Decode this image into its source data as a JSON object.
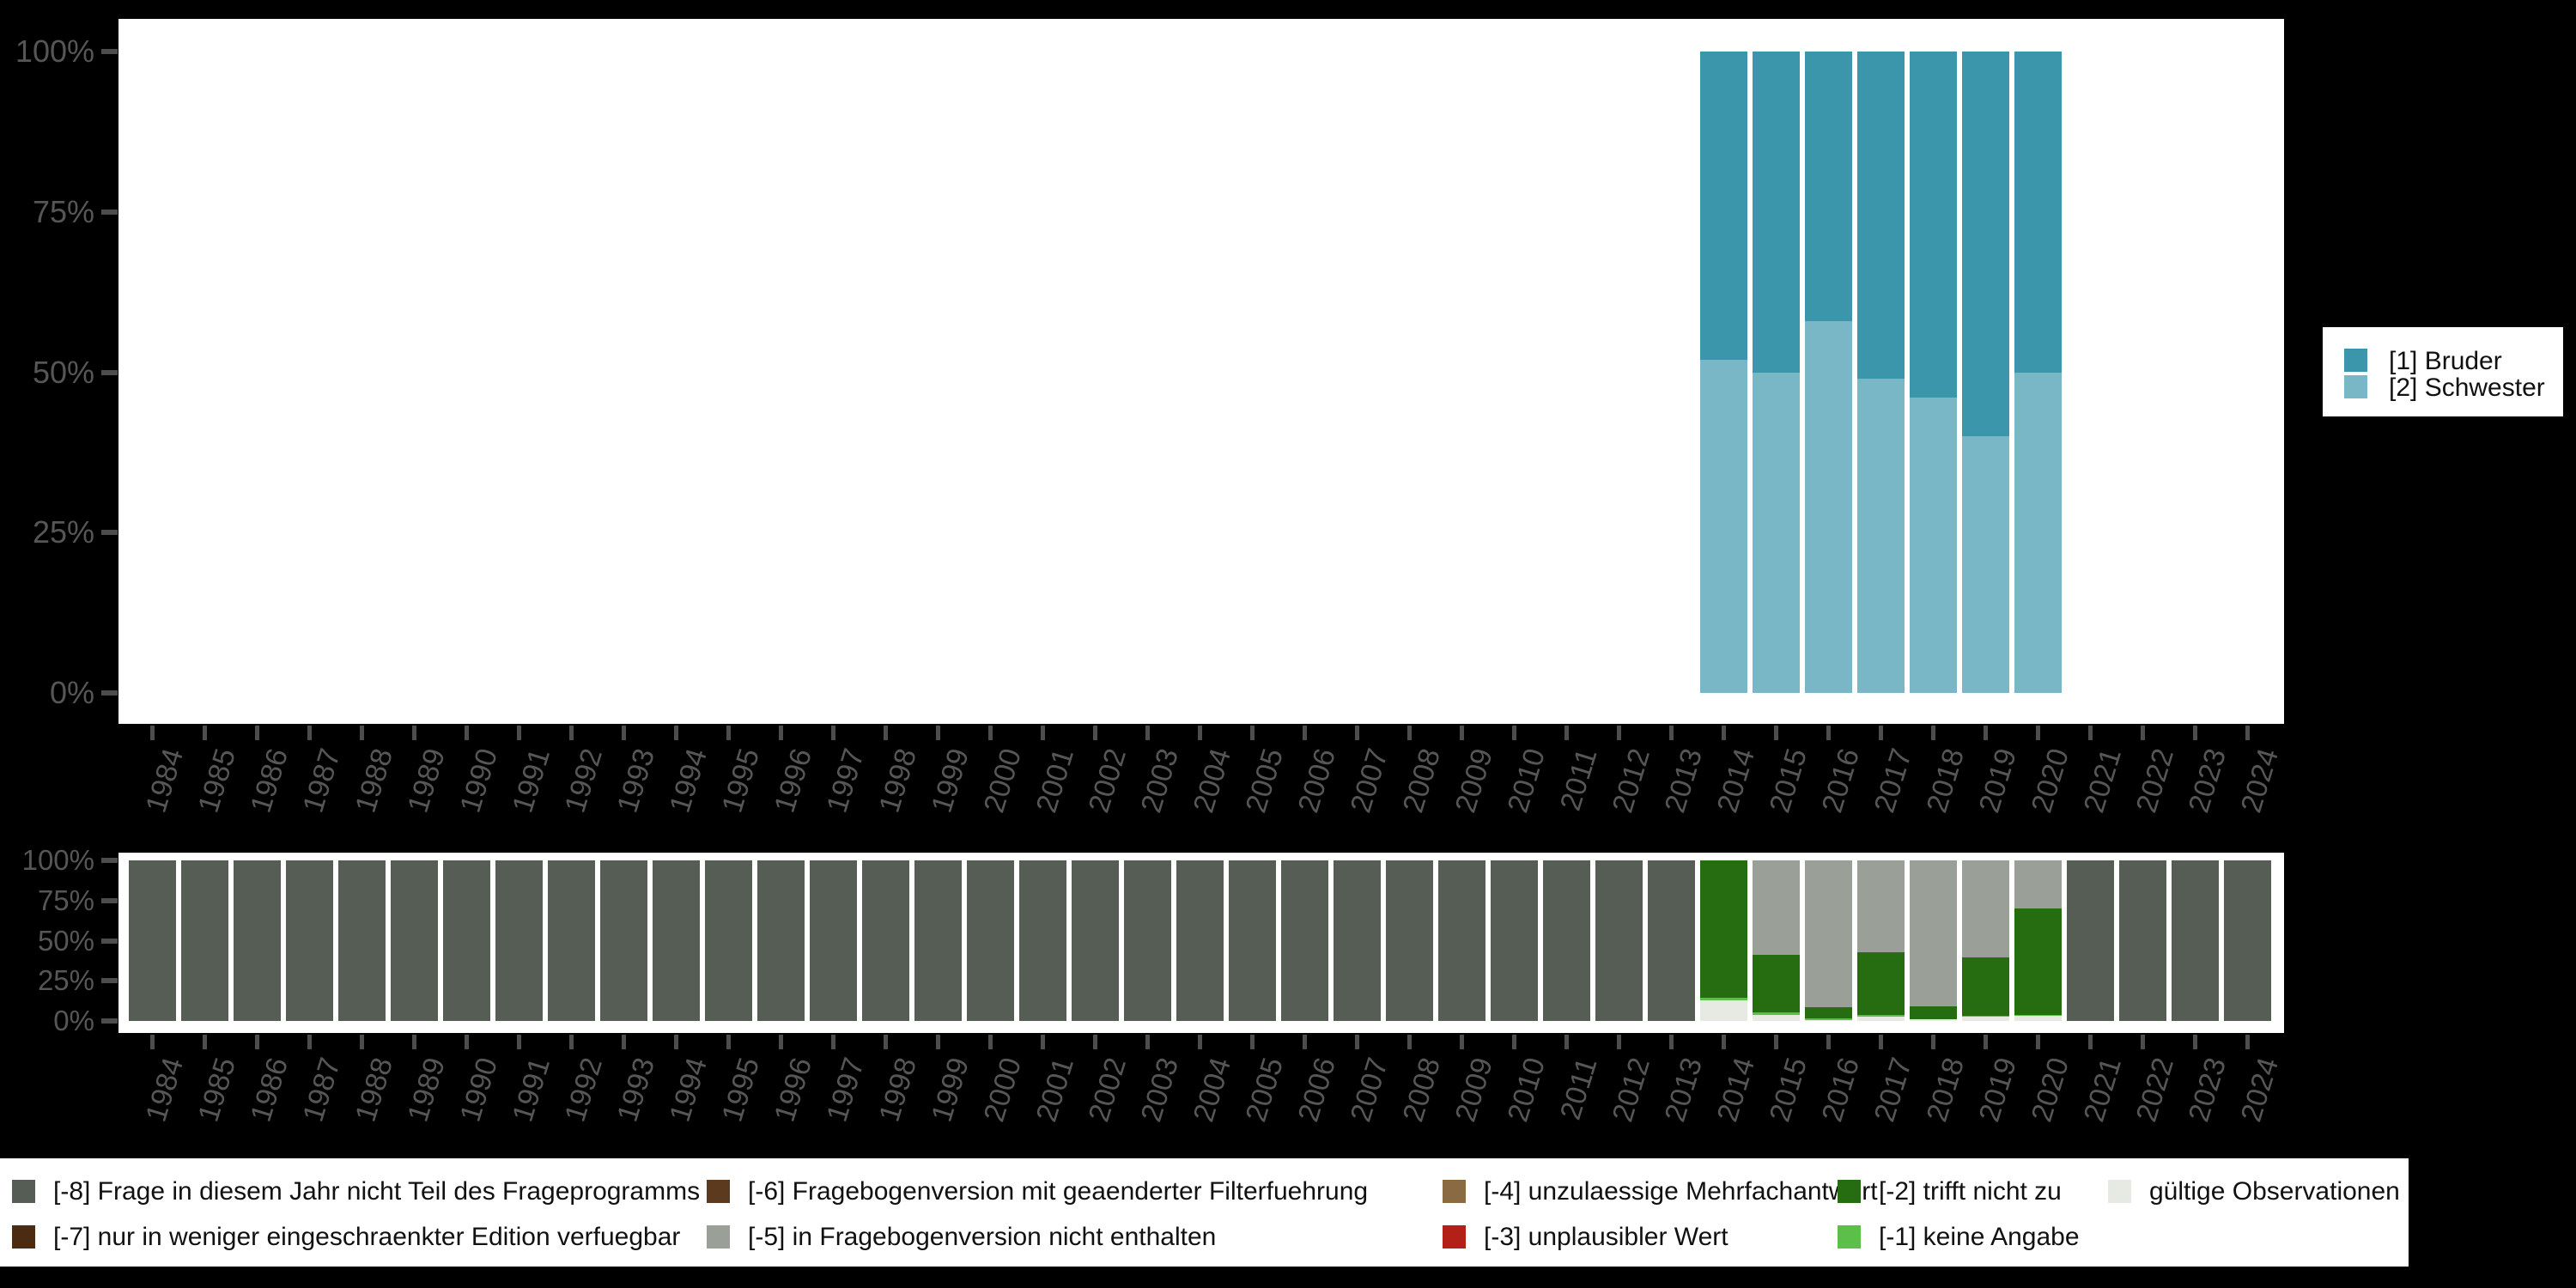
{
  "colors": {
    "background": "#000000",
    "plot_bg": "#ffffff",
    "axis_text": "#565656",
    "tick": "#4d4d4d",
    "legend_text": "#111111",
    "bruder": "#3b96ab",
    "schwester": "#7ab7c6",
    "m8": "#565d55",
    "m7": "#4b2b12",
    "m6": "#5c3a1e",
    "m5": "#9aa098",
    "m4": "#8a6a43",
    "m3": "#b22018",
    "m2": "#266d12",
    "m1": "#5cbf49",
    "valid": "#e6eae2"
  },
  "chart_data": [
    {
      "type": "bar",
      "stacked": true,
      "unit": "percent",
      "title": "",
      "xlabel": "",
      "ylabel": "",
      "ylim": [
        0,
        100
      ],
      "grid": false,
      "legend_position": "right",
      "categories": [
        "1984",
        "1985",
        "1986",
        "1987",
        "1988",
        "1989",
        "1990",
        "1991",
        "1992",
        "1993",
        "1994",
        "1995",
        "1996",
        "1997",
        "1998",
        "1999",
        "2000",
        "2001",
        "2002",
        "2003",
        "2004",
        "2005",
        "2006",
        "2007",
        "2008",
        "2009",
        "2010",
        "2011",
        "2012",
        "2013",
        "2014",
        "2015",
        "2016",
        "2017",
        "2018",
        "2019",
        "2020",
        "2021",
        "2022",
        "2023",
        "2024"
      ],
      "yticks": [
        {
          "label": "0%",
          "value": 0
        },
        {
          "label": "25%",
          "value": 25
        },
        {
          "label": "50%",
          "value": 50
        },
        {
          "label": "75%",
          "value": 75
        },
        {
          "label": "100%",
          "value": 100
        }
      ],
      "stack_order_bottom_to_top": [
        "[2] Schwester",
        "[1] Bruder"
      ],
      "series": [
        {
          "name": "[1] Bruder",
          "color_key": "bruder",
          "values": [
            null,
            null,
            null,
            null,
            null,
            null,
            null,
            null,
            null,
            null,
            null,
            null,
            null,
            null,
            null,
            null,
            null,
            null,
            null,
            null,
            null,
            null,
            null,
            null,
            null,
            null,
            null,
            null,
            null,
            null,
            48,
            50,
            42,
            51,
            54,
            60,
            50,
            null,
            null,
            null,
            null
          ]
        },
        {
          "name": "[2] Schwester",
          "color_key": "schwester",
          "values": [
            null,
            null,
            null,
            null,
            null,
            null,
            null,
            null,
            null,
            null,
            null,
            null,
            null,
            null,
            null,
            null,
            null,
            null,
            null,
            null,
            null,
            null,
            null,
            null,
            null,
            null,
            null,
            null,
            null,
            null,
            52,
            50,
            58,
            49,
            46,
            40,
            50,
            null,
            null,
            null,
            null
          ]
        }
      ]
    },
    {
      "type": "bar",
      "stacked": true,
      "unit": "percent",
      "title": "",
      "xlabel": "",
      "ylabel": "",
      "ylim": [
        0,
        100
      ],
      "grid": false,
      "legend_position": "bottom",
      "categories": [
        "1984",
        "1985",
        "1986",
        "1987",
        "1988",
        "1989",
        "1990",
        "1991",
        "1992",
        "1993",
        "1994",
        "1995",
        "1996",
        "1997",
        "1998",
        "1999",
        "2000",
        "2001",
        "2002",
        "2003",
        "2004",
        "2005",
        "2006",
        "2007",
        "2008",
        "2009",
        "2010",
        "2011",
        "2012",
        "2013",
        "2014",
        "2015",
        "2016",
        "2017",
        "2018",
        "2019",
        "2020",
        "2021",
        "2022",
        "2023",
        "2024"
      ],
      "yticks": [
        {
          "label": "0%",
          "value": 0
        },
        {
          "label": "25%",
          "value": 25
        },
        {
          "label": "50%",
          "value": 50
        },
        {
          "label": "75%",
          "value": 75
        },
        {
          "label": "100%",
          "value": 100
        }
      ],
      "stack_order_bottom_to_top": [
        "gültige Observationen",
        "[-1] keine Angabe",
        "[-2] trifft nicht zu",
        "[-5] in Fragebogenversion nicht enthalten",
        "[-8] Frage in diesem Jahr nicht Teil des Frageprogramms"
      ],
      "series": [
        {
          "name": "[-8] Frage in diesem Jahr nicht Teil des Frageprogramms",
          "color_key": "m8",
          "values": [
            100,
            100,
            100,
            100,
            100,
            100,
            100,
            100,
            100,
            100,
            100,
            100,
            100,
            100,
            100,
            100,
            100,
            100,
            100,
            100,
            100,
            100,
            100,
            100,
            100,
            100,
            100,
            100,
            100,
            100,
            null,
            null,
            null,
            null,
            null,
            null,
            null,
            100,
            100,
            100,
            100
          ]
        },
        {
          "name": "[-5] in Fragebogenversion nicht enthalten",
          "color_key": "m5",
          "values": [
            null,
            null,
            null,
            null,
            null,
            null,
            null,
            null,
            null,
            null,
            null,
            null,
            null,
            null,
            null,
            null,
            null,
            null,
            null,
            null,
            null,
            null,
            null,
            null,
            null,
            null,
            null,
            null,
            null,
            null,
            null,
            59,
            91.5,
            57,
            91,
            60.5,
            30,
            null,
            null,
            null,
            null
          ]
        },
        {
          "name": "[-2] trifft nicht zu",
          "color_key": "m2",
          "values": [
            null,
            null,
            null,
            null,
            null,
            null,
            null,
            null,
            null,
            null,
            null,
            null,
            null,
            null,
            null,
            null,
            null,
            null,
            null,
            null,
            null,
            null,
            null,
            null,
            null,
            null,
            null,
            null,
            null,
            null,
            85.5,
            35.5,
            7,
            39.5,
            7.7,
            36.5,
            66,
            null,
            null,
            null,
            null
          ]
        },
        {
          "name": "[-1] keine Angabe",
          "color_key": "m1",
          "values": [
            null,
            null,
            null,
            null,
            null,
            null,
            null,
            null,
            null,
            null,
            null,
            null,
            null,
            null,
            null,
            null,
            null,
            null,
            null,
            null,
            null,
            null,
            null,
            null,
            null,
            null,
            null,
            null,
            null,
            null,
            1.5,
            1.5,
            1,
            1,
            null,
            0.5,
            1,
            null,
            null,
            null,
            null
          ]
        },
        {
          "name": "gültige Observationen",
          "color_key": "valid",
          "values": [
            null,
            null,
            null,
            null,
            null,
            null,
            null,
            null,
            null,
            null,
            null,
            null,
            null,
            null,
            null,
            null,
            null,
            null,
            null,
            null,
            null,
            null,
            null,
            null,
            null,
            null,
            null,
            null,
            null,
            null,
            13,
            4,
            0.5,
            2.5,
            1.3,
            2.5,
            3,
            null,
            null,
            null,
            null
          ]
        }
      ]
    }
  ],
  "legend_top": {
    "items": [
      {
        "label": "[1] Bruder",
        "color_key": "bruder"
      },
      {
        "label": "[2] Schwester",
        "color_key": "schwester"
      }
    ]
  },
  "legend_bottom": {
    "entries": [
      {
        "label": "[-8] Frage in diesem Jahr nicht Teil des Frageprogramms",
        "color_key": "m8",
        "column": 0,
        "row": 0
      },
      {
        "label": "[-7] nur in weniger eingeschraenkter Edition verfuegbar",
        "color_key": "m7",
        "column": 0,
        "row": 1
      },
      {
        "label": "[-6] Fragebogenversion mit geaenderter Filterfuehrung",
        "color_key": "m6",
        "column": 1,
        "row": 0
      },
      {
        "label": "[-5] in Fragebogenversion nicht enthalten",
        "color_key": "m5",
        "column": 1,
        "row": 1
      },
      {
        "label": "[-4] unzulaessige Mehrfachantwort",
        "color_key": "m4",
        "column": 2,
        "row": 0
      },
      {
        "label": "[-3] unplausibler Wert",
        "color_key": "m3",
        "column": 2,
        "row": 1
      },
      {
        "label": "[-2] trifft nicht zu",
        "color_key": "m2",
        "column": 3,
        "row": 0
      },
      {
        "label": "[-1] keine Angabe",
        "color_key": "m1",
        "column": 3,
        "row": 1
      },
      {
        "label": "gültige Observationen",
        "color_key": "valid",
        "column": 4,
        "row": 0
      }
    ]
  }
}
